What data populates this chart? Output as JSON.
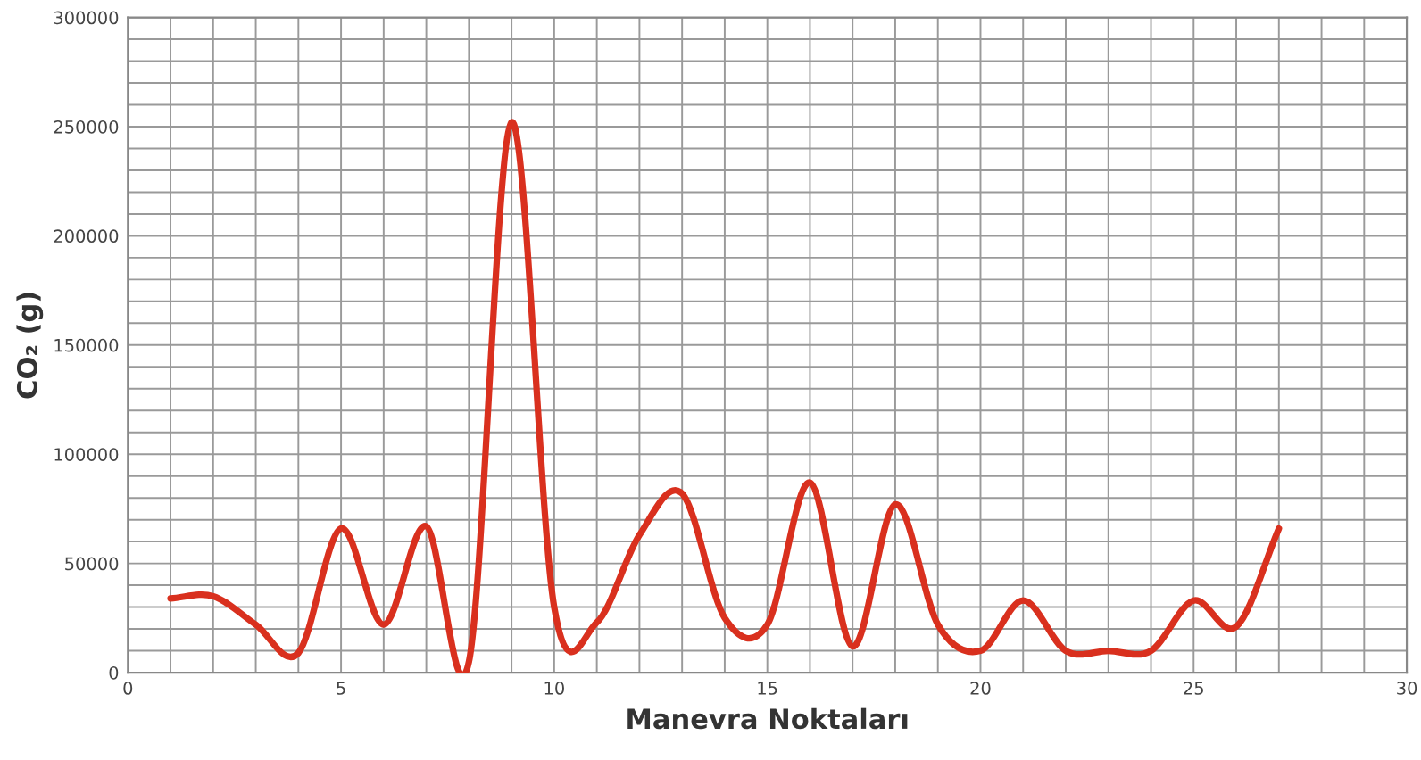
{
  "chart_data": {
    "type": "line",
    "xlabel": "Manevra Noktaları",
    "ylabel": "CO₂ (g)",
    "x": [
      1,
      2,
      3,
      4,
      5,
      6,
      7,
      8,
      9,
      10,
      11,
      12,
      13,
      14,
      15,
      16,
      17,
      18,
      19,
      20,
      21,
      22,
      23,
      24,
      25,
      26,
      27
    ],
    "series": [
      {
        "color": "#d9301e",
        "values": [
          34000,
          35000,
          22000,
          9000,
          66000,
          22000,
          67000,
          5000,
          252000,
          30000,
          23000,
          63000,
          82000,
          25000,
          22000,
          87000,
          12000,
          77000,
          22000,
          10000,
          33000,
          10000,
          10000,
          10000,
          33000,
          21000,
          66000
        ]
      }
    ],
    "xlim": [
      0,
      30
    ],
    "xticks": [
      0,
      5,
      10,
      15,
      20,
      25,
      30
    ],
    "ylim": [
      0,
      300000
    ],
    "yticks": [
      0,
      50000,
      100000,
      150000,
      200000,
      250000,
      300000
    ],
    "grid": true,
    "marker": "none",
    "line_style": "solid"
  }
}
